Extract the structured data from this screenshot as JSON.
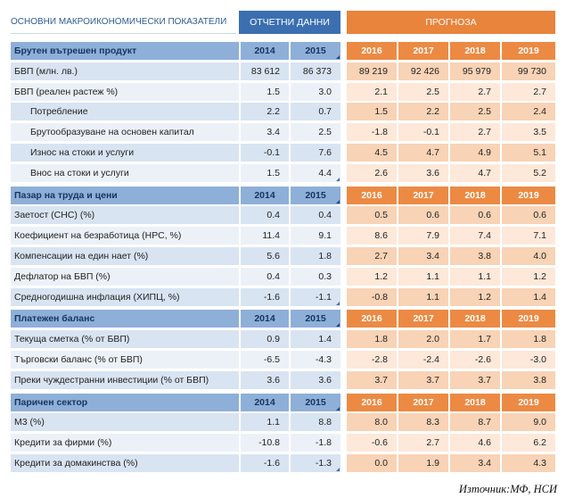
{
  "header": {
    "title": "ОСНОВНИ МАКРОИКОНОМИЧЕСКИ ПОКАЗАТЕЛИ",
    "actual_label": "ОТЧЕТНИ ДАННИ",
    "forecast_label": "ПРОГНОЗА"
  },
  "years": [
    "2014",
    "2015",
    "2016",
    "2017",
    "2018",
    "2019"
  ],
  "sections": [
    {
      "title": "Брутен вътрешен продукт",
      "rows": [
        {
          "label": "БВП (млн. лв.)",
          "values": [
            "83 612",
            "86 373",
            "89 219",
            "92 426",
            "95 979",
            "99 730"
          ],
          "indent": false
        },
        {
          "label": "БВП (реален растеж %)",
          "values": [
            "1.5",
            "3.0",
            "2.1",
            "2.5",
            "2.7",
            "2.7"
          ],
          "indent": false
        },
        {
          "label": "Потребление",
          "values": [
            "2.2",
            "0.7",
            "1.5",
            "2.2",
            "2.5",
            "2.4"
          ],
          "indent": true
        },
        {
          "label": "Брутообразуване на основен капитал",
          "values": [
            "3.4",
            "2.5",
            "-1.8",
            "-0.1",
            "2.7",
            "3.5"
          ],
          "indent": true
        },
        {
          "label": "Износ на стоки и услуги",
          "values": [
            "-0.1",
            "7.6",
            "4.5",
            "4.7",
            "4.9",
            "5.1"
          ],
          "indent": true
        },
        {
          "label": "Внос на стоки и услуги",
          "values": [
            "1.5",
            "4.4",
            "2.6",
            "3.6",
            "4.7",
            "5.2"
          ],
          "indent": true
        }
      ]
    },
    {
      "title": "Пазар на труда и цени",
      "rows": [
        {
          "label": "Заетост (СНС) (%)",
          "values": [
            "0.4",
            "0.4",
            "0.5",
            "0.6",
            "0.6",
            "0.6"
          ],
          "indent": false
        },
        {
          "label": "Коефициент на безработица (НРС, %)",
          "values": [
            "11.4",
            "9.1",
            "8.6",
            "7.9",
            "7.4",
            "7.1"
          ],
          "indent": false
        },
        {
          "label": "Компенсации на един нает (%)",
          "values": [
            "5.6",
            "1.8",
            "2.7",
            "3.4",
            "3.8",
            "4.0"
          ],
          "indent": false
        },
        {
          "label": "Дефлатор на БВП (%)",
          "values": [
            "0.4",
            "0.3",
            "1.2",
            "1.1",
            "1.1",
            "1.2"
          ],
          "indent": false
        },
        {
          "label": "Средногодишна инфлация (ХИПЦ, %)",
          "values": [
            "-1.6",
            "-1.1",
            "-0.8",
            "1.1",
            "1.2",
            "1.4"
          ],
          "indent": false
        }
      ]
    },
    {
      "title": "Платежен баланс",
      "rows": [
        {
          "label": "Текуща сметка (% от БВП)",
          "values": [
            "0.9",
            "1.4",
            "1.8",
            "2.0",
            "1.7",
            "1.8"
          ],
          "indent": false
        },
        {
          "label": "Търговски баланс (% от БВП)",
          "values": [
            "-6.5",
            "-4.3",
            "-2.8",
            "-2.4",
            "-2.6",
            "-3.0"
          ],
          "indent": false
        },
        {
          "label": "Преки чуждестранни инвестиции (% от БВП)",
          "values": [
            "3.6",
            "3.6",
            "3.7",
            "3.7",
            "3.7",
            "3.8"
          ],
          "indent": false
        }
      ]
    },
    {
      "title": "Паричен сектор",
      "rows": [
        {
          "label": "М3 (%)",
          "values": [
            "1.1",
            "8.8",
            "8.0",
            "8.3",
            "8.7",
            "9.0"
          ],
          "indent": false
        },
        {
          "label": "Кредити за фирми (%)",
          "values": [
            "-10.8",
            "-1.8",
            "-0.6",
            "2.7",
            "4.6",
            "6.2"
          ],
          "indent": false
        },
        {
          "label": "Кредити за домакинства (%)",
          "values": [
            "-1.6",
            "-1.3",
            "0.0",
            "1.9",
            "3.4",
            "4.3"
          ],
          "indent": false
        }
      ]
    }
  ],
  "source": "Източник:МФ, НСИ",
  "colors": {
    "actual_header": "#3b6fb0",
    "forecast_header": "#e8843c",
    "section_actual": "#8eafd8",
    "section_forecast": "#ec8a43"
  }
}
